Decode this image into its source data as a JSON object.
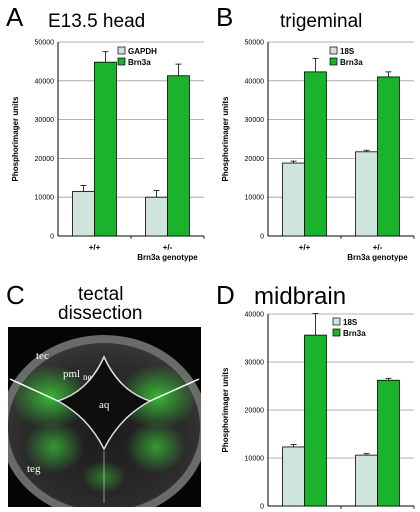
{
  "panels": {
    "A": {
      "letter": "A",
      "title": "E13.5 head"
    },
    "B": {
      "letter": "B",
      "title": "trigeminal"
    },
    "C": {
      "letter": "C",
      "title_lines": [
        "tectal",
        "dissection"
      ],
      "labels": {
        "tec": "tec",
        "pml": "pml",
        "ne": "ne",
        "aq": "aq",
        "teg": "teg"
      }
    },
    "D": {
      "letter": "D",
      "title": "midbrain"
    }
  },
  "colors": {
    "control": "#cfe5dc",
    "brn3a": "#1bb32c",
    "grid": "#9a9a9a"
  },
  "chart_data": [
    {
      "id": "A",
      "type": "bar",
      "categories": [
        "+/+",
        "+/-"
      ],
      "series": [
        {
          "name": "GAPDH",
          "values": [
            11500,
            10000
          ],
          "errors": [
            1500,
            1700
          ]
        },
        {
          "name": "Brn3a",
          "values": [
            44800,
            41300
          ],
          "errors": [
            2700,
            3000
          ]
        }
      ],
      "ylabel": "Phosphorimager units",
      "xlabel": "Brn3a genotype",
      "ylim": [
        0,
        50000
      ],
      "yticks": [
        0,
        10000,
        20000,
        30000,
        40000,
        50000
      ],
      "grid": true,
      "legend": "top-left"
    },
    {
      "id": "B",
      "type": "bar",
      "categories": [
        "+/+",
        "+/-"
      ],
      "series": [
        {
          "name": "18S",
          "values": [
            18800,
            21700
          ],
          "errors": [
            500,
            400
          ]
        },
        {
          "name": "Brn3a",
          "values": [
            42300,
            41000
          ],
          "errors": [
            3500,
            1300
          ]
        }
      ],
      "ylabel": "Phosphorimager units",
      "xlabel": "Brn3a genotype",
      "ylim": [
        0,
        50000
      ],
      "yticks": [
        0,
        10000,
        20000,
        30000,
        40000,
        50000
      ],
      "grid": true,
      "legend": "top-left"
    },
    {
      "id": "D",
      "type": "bar",
      "categories": [
        "",
        ""
      ],
      "series": [
        {
          "name": "18S",
          "values": [
            12300,
            10600
          ],
          "errors": [
            500,
            300
          ]
        },
        {
          "name": "Brn3a",
          "values": [
            35600,
            26200
          ],
          "errors": [
            4500,
            400
          ]
        }
      ],
      "ylabel": "Phosphorimager units",
      "xlabel": "",
      "ylim": [
        0,
        40000
      ],
      "yticks": [
        0,
        10000,
        20000,
        30000,
        40000
      ],
      "grid": true,
      "legend": "top-left"
    }
  ]
}
